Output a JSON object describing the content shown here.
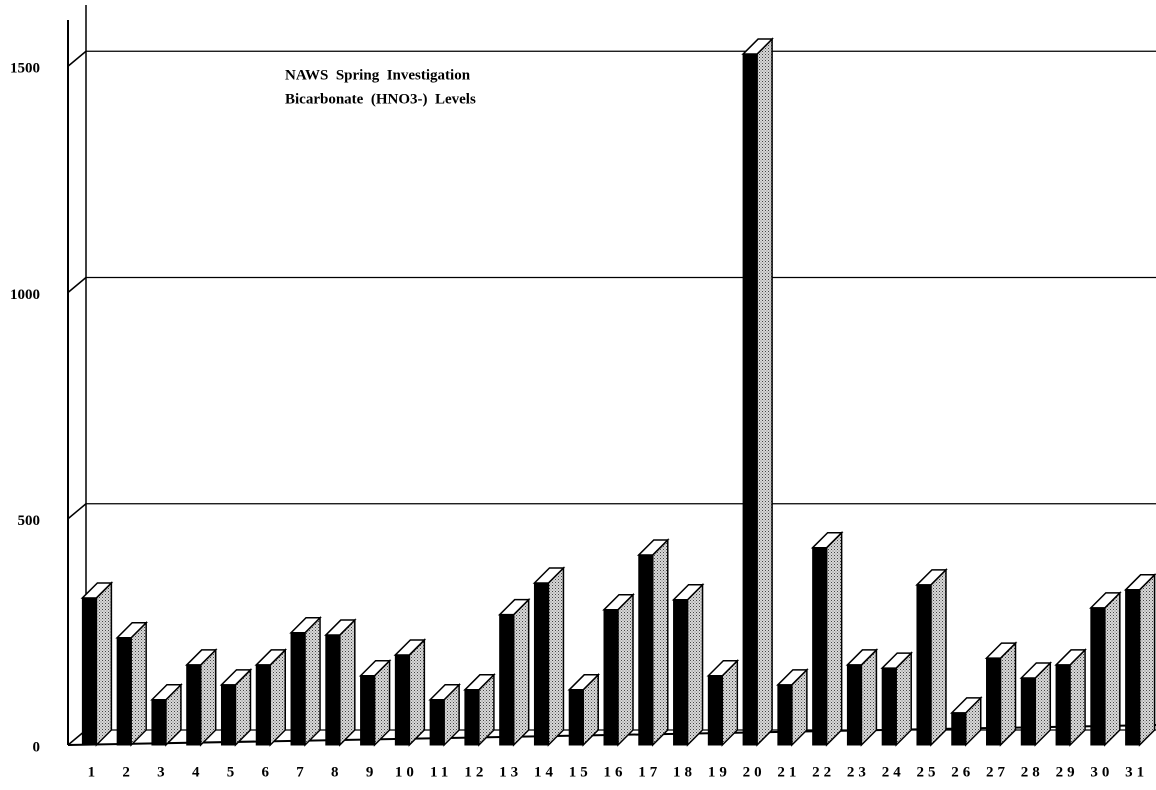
{
  "chart_data": {
    "type": "bar3d",
    "title": "NAWS  Spring  Investigation",
    "subtitle": "Bicarbonate  (HNO3-)  Levels",
    "categories": [
      "1",
      "2",
      "3",
      "4",
      "5",
      "6",
      "7",
      "8",
      "9",
      "10",
      "11",
      "12",
      "13",
      "14",
      "15",
      "16",
      "17",
      "18",
      "19",
      "20",
      "21",
      "22",
      "23",
      "24",
      "25",
      "26",
      "27",
      "28",
      "29",
      "30",
      "31"
    ],
    "values": [
      325,
      237,
      100,
      177,
      133,
      177,
      248,
      243,
      153,
      199,
      100,
      122,
      288,
      358,
      122,
      299,
      420,
      321,
      153,
      1527,
      133,
      436,
      177,
      170,
      354,
      71,
      192,
      148,
      177,
      303,
      343
    ],
    "color": "#000000",
    "side_color": "#b0b0b0",
    "ylim": [
      0,
      1600
    ],
    "yticks": [
      0,
      500,
      1000,
      1500
    ],
    "grid": true
  }
}
